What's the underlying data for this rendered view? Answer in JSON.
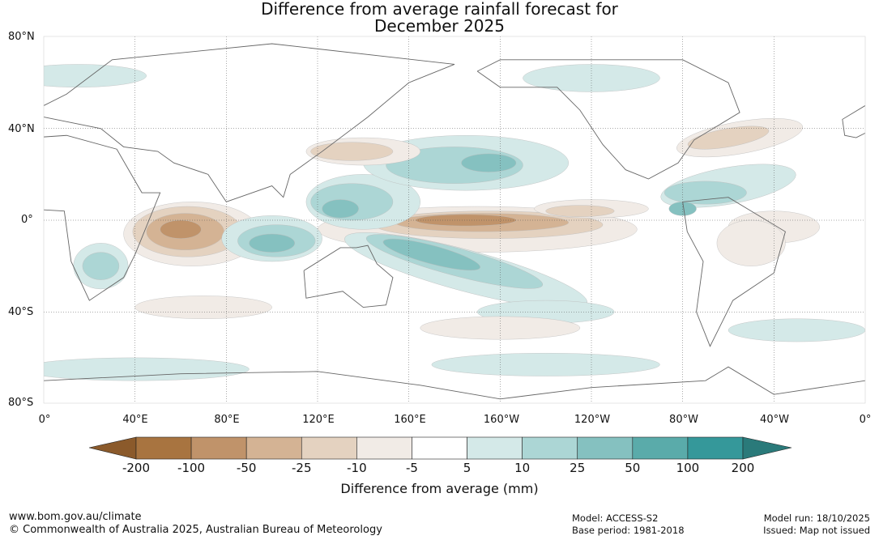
{
  "title_line1": "Difference from average rainfall forecast for",
  "title_line2": "December 2025",
  "lat_labels": [
    "80°N",
    "40°N",
    "0°",
    "40°S",
    "80°S"
  ],
  "lon_labels": [
    "0°",
    "40°E",
    "80°E",
    "120°E",
    "160°E",
    "160°W",
    "120°W",
    "80°W",
    "40°W",
    "0°"
  ],
  "colorbar": {
    "label": "Difference from average (mm)",
    "ticks": [
      "-200",
      "-100",
      "-50",
      "-25",
      "-10",
      "-5",
      "5",
      "10",
      "25",
      "50",
      "100",
      "200"
    ],
    "low_extend_color": "#8b5a2b",
    "colors": [
      "#a87440",
      "#c0936a",
      "#d4b394",
      "#e4d2c0",
      "#f1ebe6",
      "#ffffff",
      "#d4e9e8",
      "#acd6d5",
      "#85c1c0",
      "#5aabaa",
      "#35989a"
    ],
    "high_extend_color": "#2a7a7a"
  },
  "footer": {
    "url": "www.bom.gov.au/climate",
    "copyright": "© Commonwealth of Australia 2025, Australian Bureau of Meteorology",
    "model": "Model: ACCESS-S2",
    "base_period": "Base period: 1981-2018",
    "model_run": "Model run: 18/10/2025",
    "issued": "Issued: Map not issued"
  }
}
